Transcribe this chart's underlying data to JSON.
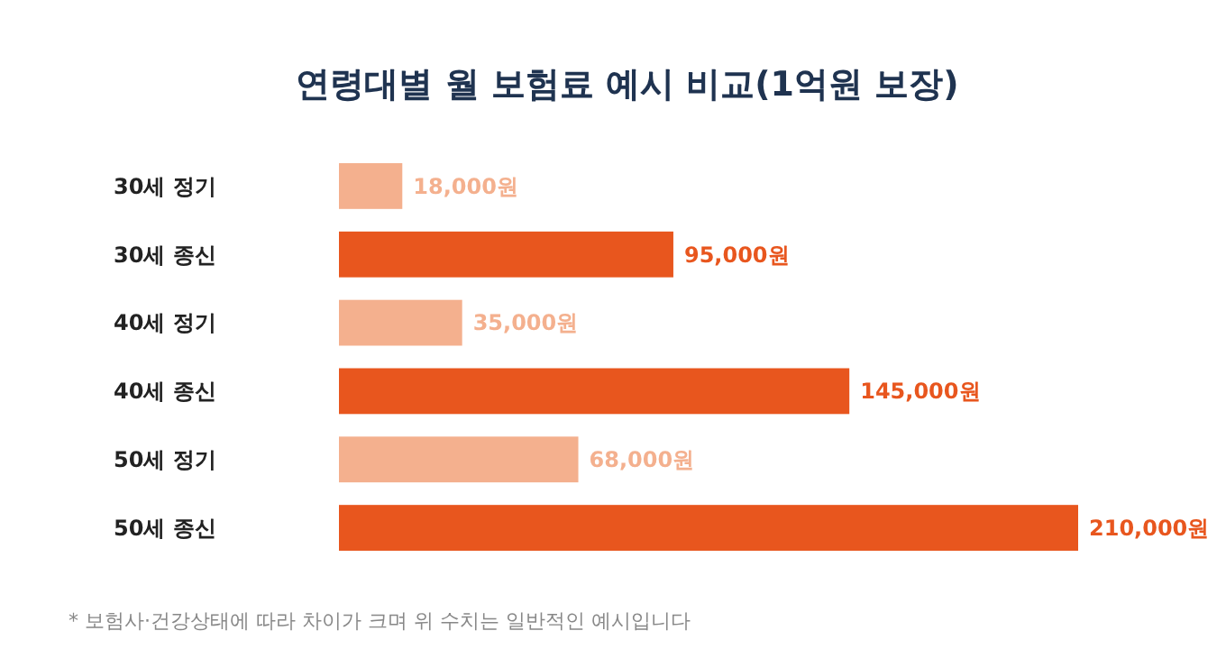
{
  "chart_data": {
    "type": "bar",
    "orientation": "horizontal",
    "title": "연령대별 월 보험료 예시 비교(1억원 보장)",
    "categories": [
      "30세 정기",
      "30세 종신",
      "40세 정기",
      "40세 종신",
      "50세 정기",
      "50세 종신"
    ],
    "values": [
      18000,
      95000,
      35000,
      145000,
      68000,
      210000
    ],
    "colors": [
      "#f4b08e",
      "#e8561e",
      "#f4b08e",
      "#e8561e",
      "#f4b08e",
      "#e8561e"
    ],
    "value_labels": [
      "18,000원",
      "95,000원",
      "35,000원",
      "145,000원",
      "68,000원",
      "210,000원"
    ],
    "annotations": [
      "* 보험사·건강상태에 따라 차이가 크며 위 수치는 일반적인 예시입니다"
    ]
  }
}
